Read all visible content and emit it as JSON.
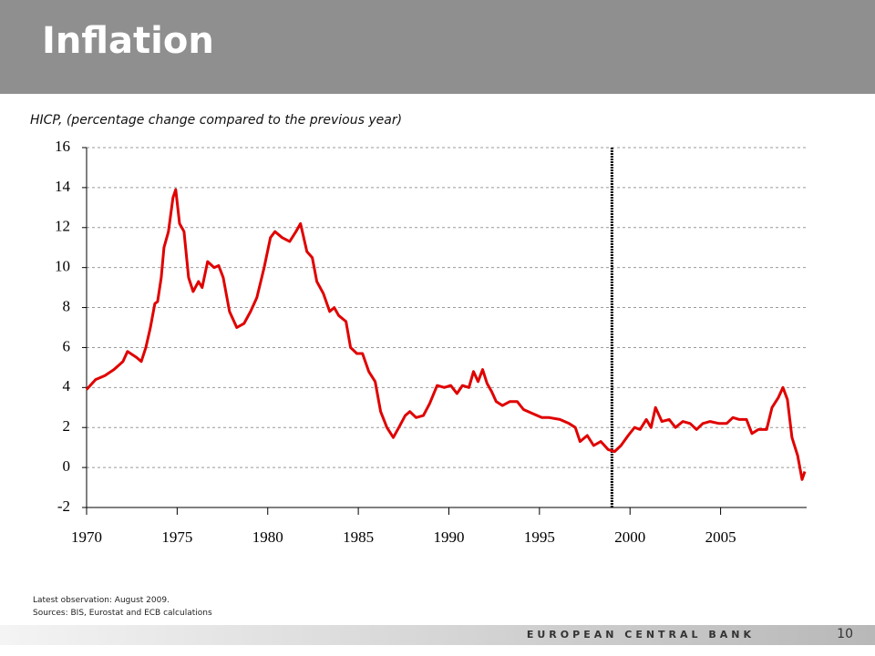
{
  "slide": {
    "title": "Inflation"
  },
  "chart_data": {
    "type": "line",
    "title": "HICP, (percentage change compared to the previous year)",
    "x": [
      1970.0,
      1970.5,
      1971.01,
      1971.51,
      1972.01,
      1972.26,
      1972.76,
      1973.02,
      1973.27,
      1973.52,
      1973.77,
      1973.92,
      1974.12,
      1974.27,
      1974.52,
      1974.77,
      1974.92,
      1975.13,
      1975.38,
      1975.63,
      1975.88,
      1976.18,
      1976.38,
      1976.68,
      1977.04,
      1977.29,
      1977.54,
      1977.89,
      1978.29,
      1978.69,
      1979.05,
      1979.4,
      1979.8,
      1980.15,
      1980.4,
      1980.8,
      1981.21,
      1981.56,
      1981.81,
      1982.16,
      1982.46,
      1982.71,
      1983.07,
      1983.42,
      1983.67,
      1983.92,
      1984.32,
      1984.57,
      1984.92,
      1985.23,
      1985.58,
      1985.93,
      1986.23,
      1986.58,
      1986.93,
      1987.24,
      1987.59,
      1987.84,
      1988.19,
      1988.59,
      1988.94,
      1989.35,
      1989.75,
      1990.1,
      1990.45,
      1990.75,
      1991.11,
      1991.36,
      1991.61,
      1991.86,
      1992.11,
      1992.36,
      1992.61,
      1992.96,
      1993.37,
      1993.77,
      1994.12,
      1994.62,
      1995.13,
      1995.53,
      1996.13,
      1996.63,
      1996.98,
      1997.24,
      1997.64,
      1997.99,
      1998.39,
      1998.79,
      1999.15,
      1999.5,
      1999.9,
      2000.25,
      2000.55,
      2000.9,
      2001.16,
      2001.41,
      2001.76,
      2002.16,
      2002.51,
      2002.91,
      2003.32,
      2003.67,
      2004.02,
      2004.42,
      2004.92,
      2005.33,
      2005.68,
      2006.03,
      2006.43,
      2006.73,
      2007.09,
      2007.54,
      2007.84,
      2008.19,
      2008.44,
      2008.69,
      2008.94,
      2009.25,
      2009.5,
      2009.65
    ],
    "series": [
      {
        "name": "HICP",
        "color": "#e00000",
        "values": [
          3.9,
          4.4,
          4.6,
          4.9,
          5.3,
          5.8,
          5.5,
          5.3,
          6.0,
          7.0,
          8.2,
          8.3,
          9.5,
          11.0,
          11.8,
          13.5,
          13.9,
          12.2,
          11.8,
          9.5,
          8.8,
          9.3,
          9.0,
          10.3,
          10.0,
          10.1,
          9.5,
          7.8,
          7.0,
          7.2,
          7.8,
          8.5,
          10.0,
          11.5,
          11.8,
          11.5,
          11.3,
          11.8,
          12.2,
          10.8,
          10.5,
          9.3,
          8.7,
          7.8,
          8.0,
          7.6,
          7.3,
          6.0,
          5.7,
          5.7,
          4.8,
          4.3,
          2.8,
          2.0,
          1.5,
          2.0,
          2.6,
          2.8,
          2.5,
          2.6,
          3.2,
          4.1,
          4.0,
          4.1,
          3.7,
          4.1,
          4.0,
          4.8,
          4.3,
          4.9,
          4.2,
          3.8,
          3.3,
          3.1,
          3.3,
          3.3,
          2.9,
          2.7,
          2.5,
          2.5,
          2.4,
          2.2,
          2.0,
          1.3,
          1.6,
          1.1,
          1.3,
          0.9,
          0.8,
          1.1,
          1.6,
          2.0,
          1.9,
          2.4,
          2.0,
          3.0,
          2.3,
          2.4,
          2.0,
          2.3,
          2.2,
          1.9,
          2.2,
          2.3,
          2.2,
          2.2,
          2.5,
          2.4,
          2.4,
          1.7,
          1.9,
          1.9,
          3.0,
          3.5,
          4.0,
          3.4,
          1.5,
          0.6,
          -0.6,
          -0.2
        ]
      }
    ],
    "xlim": [
      1970,
      2009.75
    ],
    "xticks": [
      1970,
      1975,
      1980,
      1985,
      1990,
      1995,
      2000,
      2005
    ],
    "ylim": [
      -2,
      16
    ],
    "yticks": [
      -2,
      0,
      2,
      4,
      6,
      8,
      10,
      12,
      14,
      16
    ],
    "grid": true,
    "vline": 1999
  },
  "notes": [
    "Latest observation: August 2009.",
    "Sources: BIS, Eurostat and ECB calculations"
  ],
  "footer": {
    "brand": "EUROPEAN CENTRAL BANK",
    "page": "10"
  }
}
